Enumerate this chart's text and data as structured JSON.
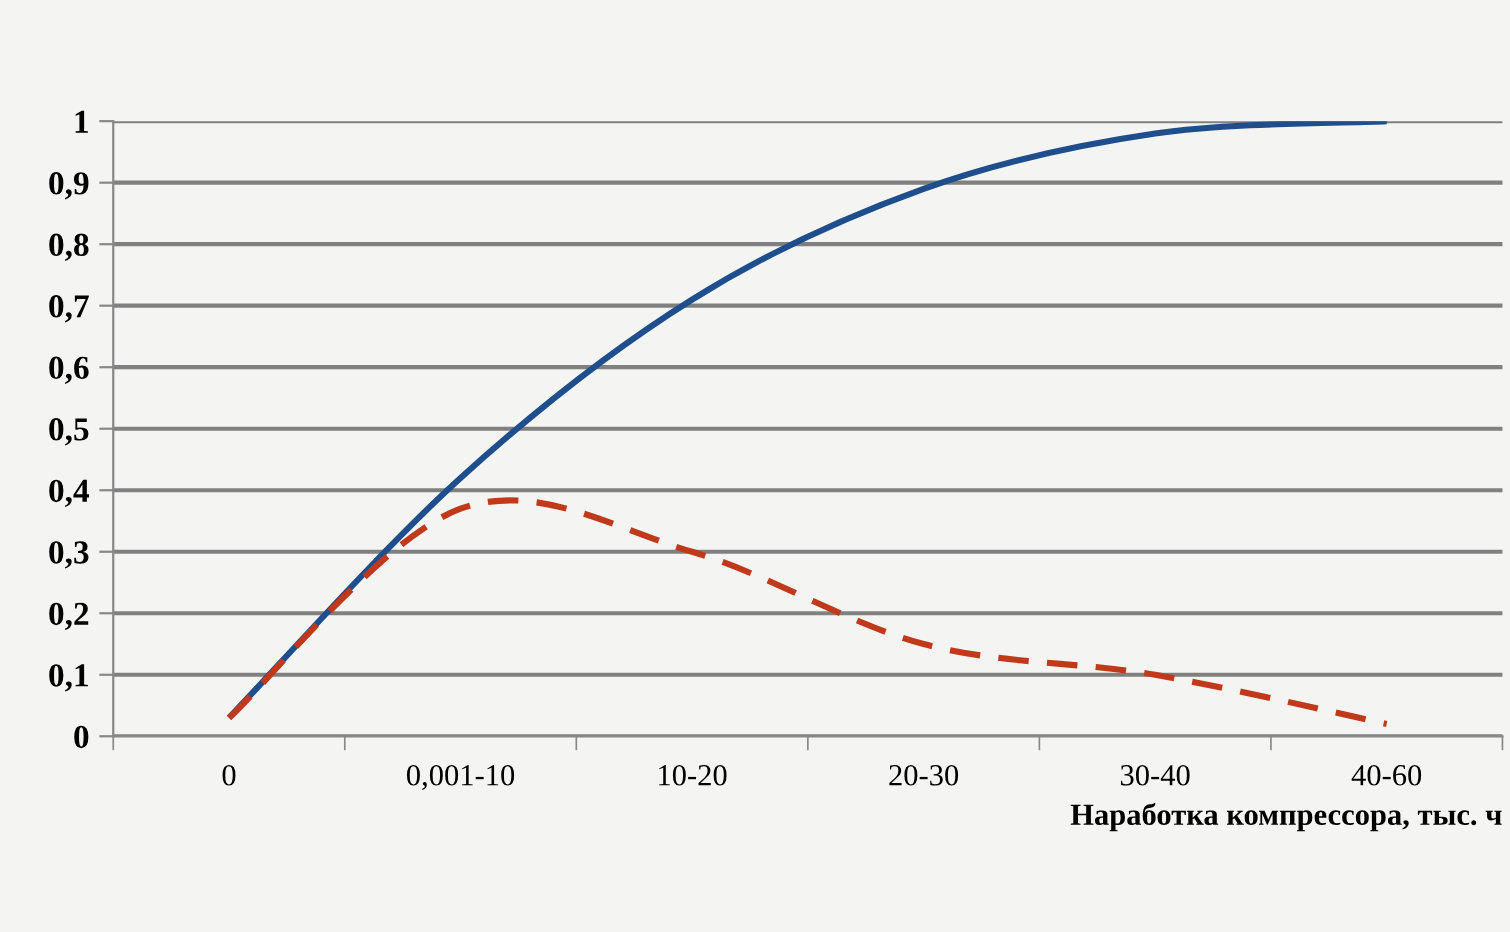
{
  "chart_data": {
    "type": "line",
    "xlabel": "Наработка компрессора, тыс. ч",
    "categories": [
      "0",
      "0,001-10",
      "10-20",
      "20-30",
      "30-40",
      "40-60"
    ],
    "series": [
      {
        "color": "#1f4e8c",
        "values": [
          0.03,
          0.42,
          0.71,
          0.89,
          0.98,
          1.0
        ],
        "line_style": "solid"
      },
      {
        "color": "#c0391b",
        "values": [
          0.03,
          0.37,
          0.3,
          0.15,
          0.1,
          0.02
        ],
        "line_style": "dashed"
      }
    ],
    "ylim": [
      0,
      1
    ],
    "yticks": [
      {
        "value": 0,
        "label": "0"
      },
      {
        "value": 0.1,
        "label": "0,1"
      },
      {
        "value": 0.2,
        "label": "0,2"
      },
      {
        "value": 0.3,
        "label": "0,3"
      },
      {
        "value": 0.4,
        "label": "0,4"
      },
      {
        "value": 0.5,
        "label": "0,5"
      },
      {
        "value": 0.6,
        "label": "0,6"
      },
      {
        "value": 0.7,
        "label": "0,7"
      },
      {
        "value": 0.8,
        "label": "0,8"
      },
      {
        "value": 0.9,
        "label": "0,9"
      },
      {
        "value": 1,
        "label": "1"
      }
    ],
    "grid": "y",
    "marker": "none"
  }
}
